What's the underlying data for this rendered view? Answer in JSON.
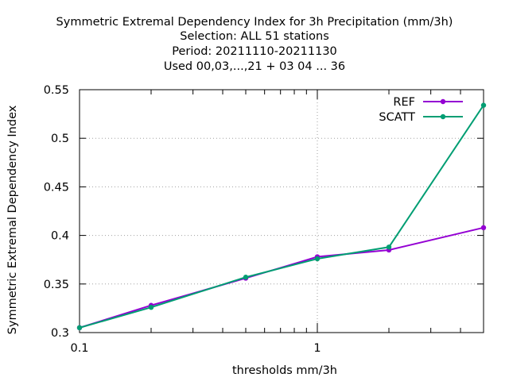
{
  "chart_data": {
    "type": "line",
    "title_lines": [
      "Symmetric Extremal Dependency Index  for 3h Precipitation (mm/3h)",
      "Selection: ALL     51 stations",
      "Period: 20211110-20211130",
      "Used  00,03,...,21  + 03 04 ... 36"
    ],
    "xlabel": "thresholds mm/3h",
    "ylabel": "Symmetric Extremal Dependency Index",
    "x_scale": "log",
    "xlim": [
      0.1,
      5
    ],
    "ylim": [
      0.3,
      0.55
    ],
    "x_tick_labels": [
      {
        "value": 0.1,
        "label": "0.1"
      },
      {
        "value": 1,
        "label": "1"
      }
    ],
    "y_ticks": [
      0.3,
      0.35,
      0.4,
      0.45,
      0.5,
      0.55
    ],
    "y_tick_labels": [
      "0.3",
      "0.35",
      "0.4",
      "0.45",
      "0.5",
      "0.55"
    ],
    "grid": true,
    "legend_position": "top-right",
    "x": [
      0.1,
      0.2,
      0.5,
      1,
      2,
      5
    ],
    "series": [
      {
        "name": "REF",
        "color": "#9400d3",
        "values": [
          0.305,
          0.328,
          0.356,
          0.378,
          0.385,
          0.408
        ]
      },
      {
        "name": "SCATT",
        "color": "#009e73",
        "values": [
          0.305,
          0.326,
          0.357,
          0.376,
          0.388,
          0.534
        ]
      }
    ]
  }
}
